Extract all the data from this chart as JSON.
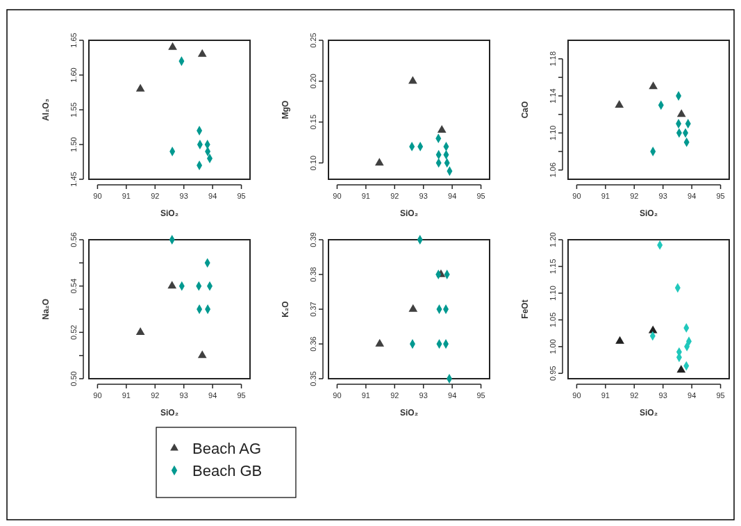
{
  "chart_data": [
    {
      "type": "scatter",
      "xlabel": "SiO₂",
      "ylabel": "Al₂O₃",
      "xlim": [
        89.7,
        95.3
      ],
      "xticks": [
        90,
        91,
        92,
        93,
        94,
        95
      ],
      "ylim": [
        1.45,
        1.65
      ],
      "yticks": [
        {
          "value": 1.45,
          "label": "1.45"
        },
        {
          "value": 1.5,
          "label": "1.50"
        },
        {
          "value": 1.55,
          "label": "1.55"
        },
        {
          "value": 1.6,
          "label": "1.60"
        },
        {
          "value": 1.65,
          "label": "1.65"
        }
      ],
      "series": [
        {
          "color": "#404040",
          "marker": "triangle",
          "x": [
            91.49,
            92.61,
            93.64
          ],
          "values": [
            1.58,
            1.64,
            1.63
          ]
        },
        {
          "color": "#009990",
          "marker": "diamond",
          "x": [
            92.92,
            92.6,
            93.54,
            93.56,
            93.82,
            93.83,
            93.9,
            93.54
          ],
          "values": [
            1.62,
            1.49,
            1.52,
            1.5,
            1.5,
            1.49,
            1.48,
            1.47
          ]
        }
      ]
    },
    {
      "type": "scatter",
      "xlabel": "SiO₂",
      "ylabel": "MgO",
      "xlim": [
        89.7,
        95.3
      ],
      "xticks": [
        90,
        91,
        92,
        93,
        94,
        95
      ],
      "ylim": [
        0.08,
        0.25
      ],
      "yticks": [
        {
          "value": 0.1,
          "label": "0.10"
        },
        0.15,
        {
          "value": 0.2,
          "label": "0.20"
        },
        0.25
      ],
      "series": [
        {
          "color": "#404040",
          "marker": "triangle",
          "x": [
            91.47,
            92.63,
            93.64
          ],
          "values": [
            0.1,
            0.2,
            0.14
          ]
        },
        {
          "color": "#009990",
          "marker": "diamond",
          "x": [
            92.6,
            92.89,
            93.52,
            93.79,
            93.53,
            93.79,
            93.53,
            93.82,
            93.91
          ],
          "values": [
            0.12,
            0.12,
            0.13,
            0.12,
            0.11,
            0.11,
            0.1,
            0.1,
            0.09
          ]
        }
      ]
    },
    {
      "type": "scatter",
      "xlabel": "SiO₂",
      "ylabel": "CaO",
      "xlim": [
        89.7,
        95.3
      ],
      "xticks": [
        90,
        91,
        92,
        93,
        94,
        95
      ],
      "ylim": [
        1.05,
        1.2
      ],
      "yticks": [
        1.06,
        {
          "value": 1.08,
          "label": null
        },
        {
          "value": 1.1,
          "label": "1.10"
        },
        {
          "value": 1.12,
          "label": null
        },
        1.14,
        {
          "value": 1.16,
          "label": null
        },
        1.18
      ],
      "series": [
        {
          "color": "#404040",
          "marker": "triangle",
          "x": [
            91.48,
            92.66,
            93.64
          ],
          "values": [
            1.13,
            1.15,
            1.12
          ]
        },
        {
          "color": "#009990",
          "marker": "diamond",
          "x": [
            93.54,
            92.93,
            93.54,
            93.87,
            93.56,
            93.78,
            93.82,
            92.65
          ],
          "values": [
            1.14,
            1.13,
            1.11,
            1.11,
            1.1,
            1.1,
            1.09,
            1.08
          ]
        }
      ]
    },
    {
      "type": "scatter",
      "xlabel": "SiO₂",
      "ylabel": "Na₂O",
      "legend": "bottom",
      "xlim": [
        89.7,
        95.3
      ],
      "xticks": [
        90,
        91,
        92,
        93,
        94,
        95
      ],
      "ylim": [
        0.5,
        0.56
      ],
      "yticks": [
        {
          "value": 0.5,
          "label": "0.50"
        },
        {
          "value": 0.51,
          "label": null
        },
        0.52,
        {
          "value": 0.53,
          "label": null
        },
        0.54,
        {
          "value": 0.55,
          "label": null
        },
        0.56
      ],
      "series": [
        {
          "name": "Beach AG",
          "color": "#404040",
          "marker": "triangle",
          "x": [
            91.49,
            92.59,
            93.64
          ],
          "values": [
            0.52,
            0.54,
            0.51
          ]
        },
        {
          "name": "Beach GB",
          "color": "#009990",
          "marker": "diamond",
          "x": [
            92.59,
            93.82,
            92.93,
            93.52,
            93.9,
            93.54,
            93.83
          ],
          "values": [
            0.56,
            0.55,
            0.54,
            0.54,
            0.54,
            0.53,
            0.53
          ]
        }
      ]
    },
    {
      "type": "scatter",
      "xlabel": "SiO₂",
      "ylabel": "K₂O",
      "xlim": [
        89.7,
        95.3
      ],
      "xticks": [
        90,
        91,
        92,
        93,
        94,
        95
      ],
      "ylim": [
        0.35,
        0.39
      ],
      "yticks": [
        0.35,
        0.36,
        0.37,
        0.38,
        0.39
      ],
      "series": [
        {
          "color": "#404040",
          "marker": "triangle",
          "x": [
            91.48,
            92.64,
            93.61
          ],
          "values": [
            0.36,
            0.37,
            0.38
          ]
        },
        {
          "color": "#009990",
          "marker": "diamond",
          "x": [
            92.88,
            93.52,
            93.82,
            93.55,
            93.78,
            92.62,
            93.55,
            93.78,
            93.9
          ],
          "values": [
            0.39,
            0.38,
            0.38,
            0.37,
            0.37,
            0.36,
            0.36,
            0.36,
            0.35
          ]
        }
      ]
    },
    {
      "type": "scatter",
      "xlabel": "SiO₂",
      "ylabel": "FeOt",
      "xlim": [
        89.7,
        95.3
      ],
      "xticks": [
        90,
        91,
        92,
        93,
        94,
        95
      ],
      "ylim": [
        0.94,
        1.2
      ],
      "yticks": [
        0.95,
        {
          "value": 1.0,
          "label": "1.00"
        },
        1.05,
        {
          "value": 1.1,
          "label": "1.10"
        },
        1.15,
        {
          "value": 1.2,
          "label": "1.20"
        }
      ],
      "series": [
        {
          "color": "#202020",
          "marker": "triangle",
          "x": [
            91.5,
            92.65,
            93.63
          ],
          "values": [
            1.01,
            1.03,
            0.956
          ]
        },
        {
          "color": "#20c8bc",
          "marker": "diamond",
          "x": [
            92.89,
            93.51,
            93.81,
            92.64,
            93.9,
            93.83,
            93.56,
            93.56,
            93.81
          ],
          "values": [
            1.19,
            1.11,
            1.035,
            1.02,
            1.01,
            1.0,
            0.99,
            0.98,
            0.964
          ]
        }
      ]
    }
  ]
}
